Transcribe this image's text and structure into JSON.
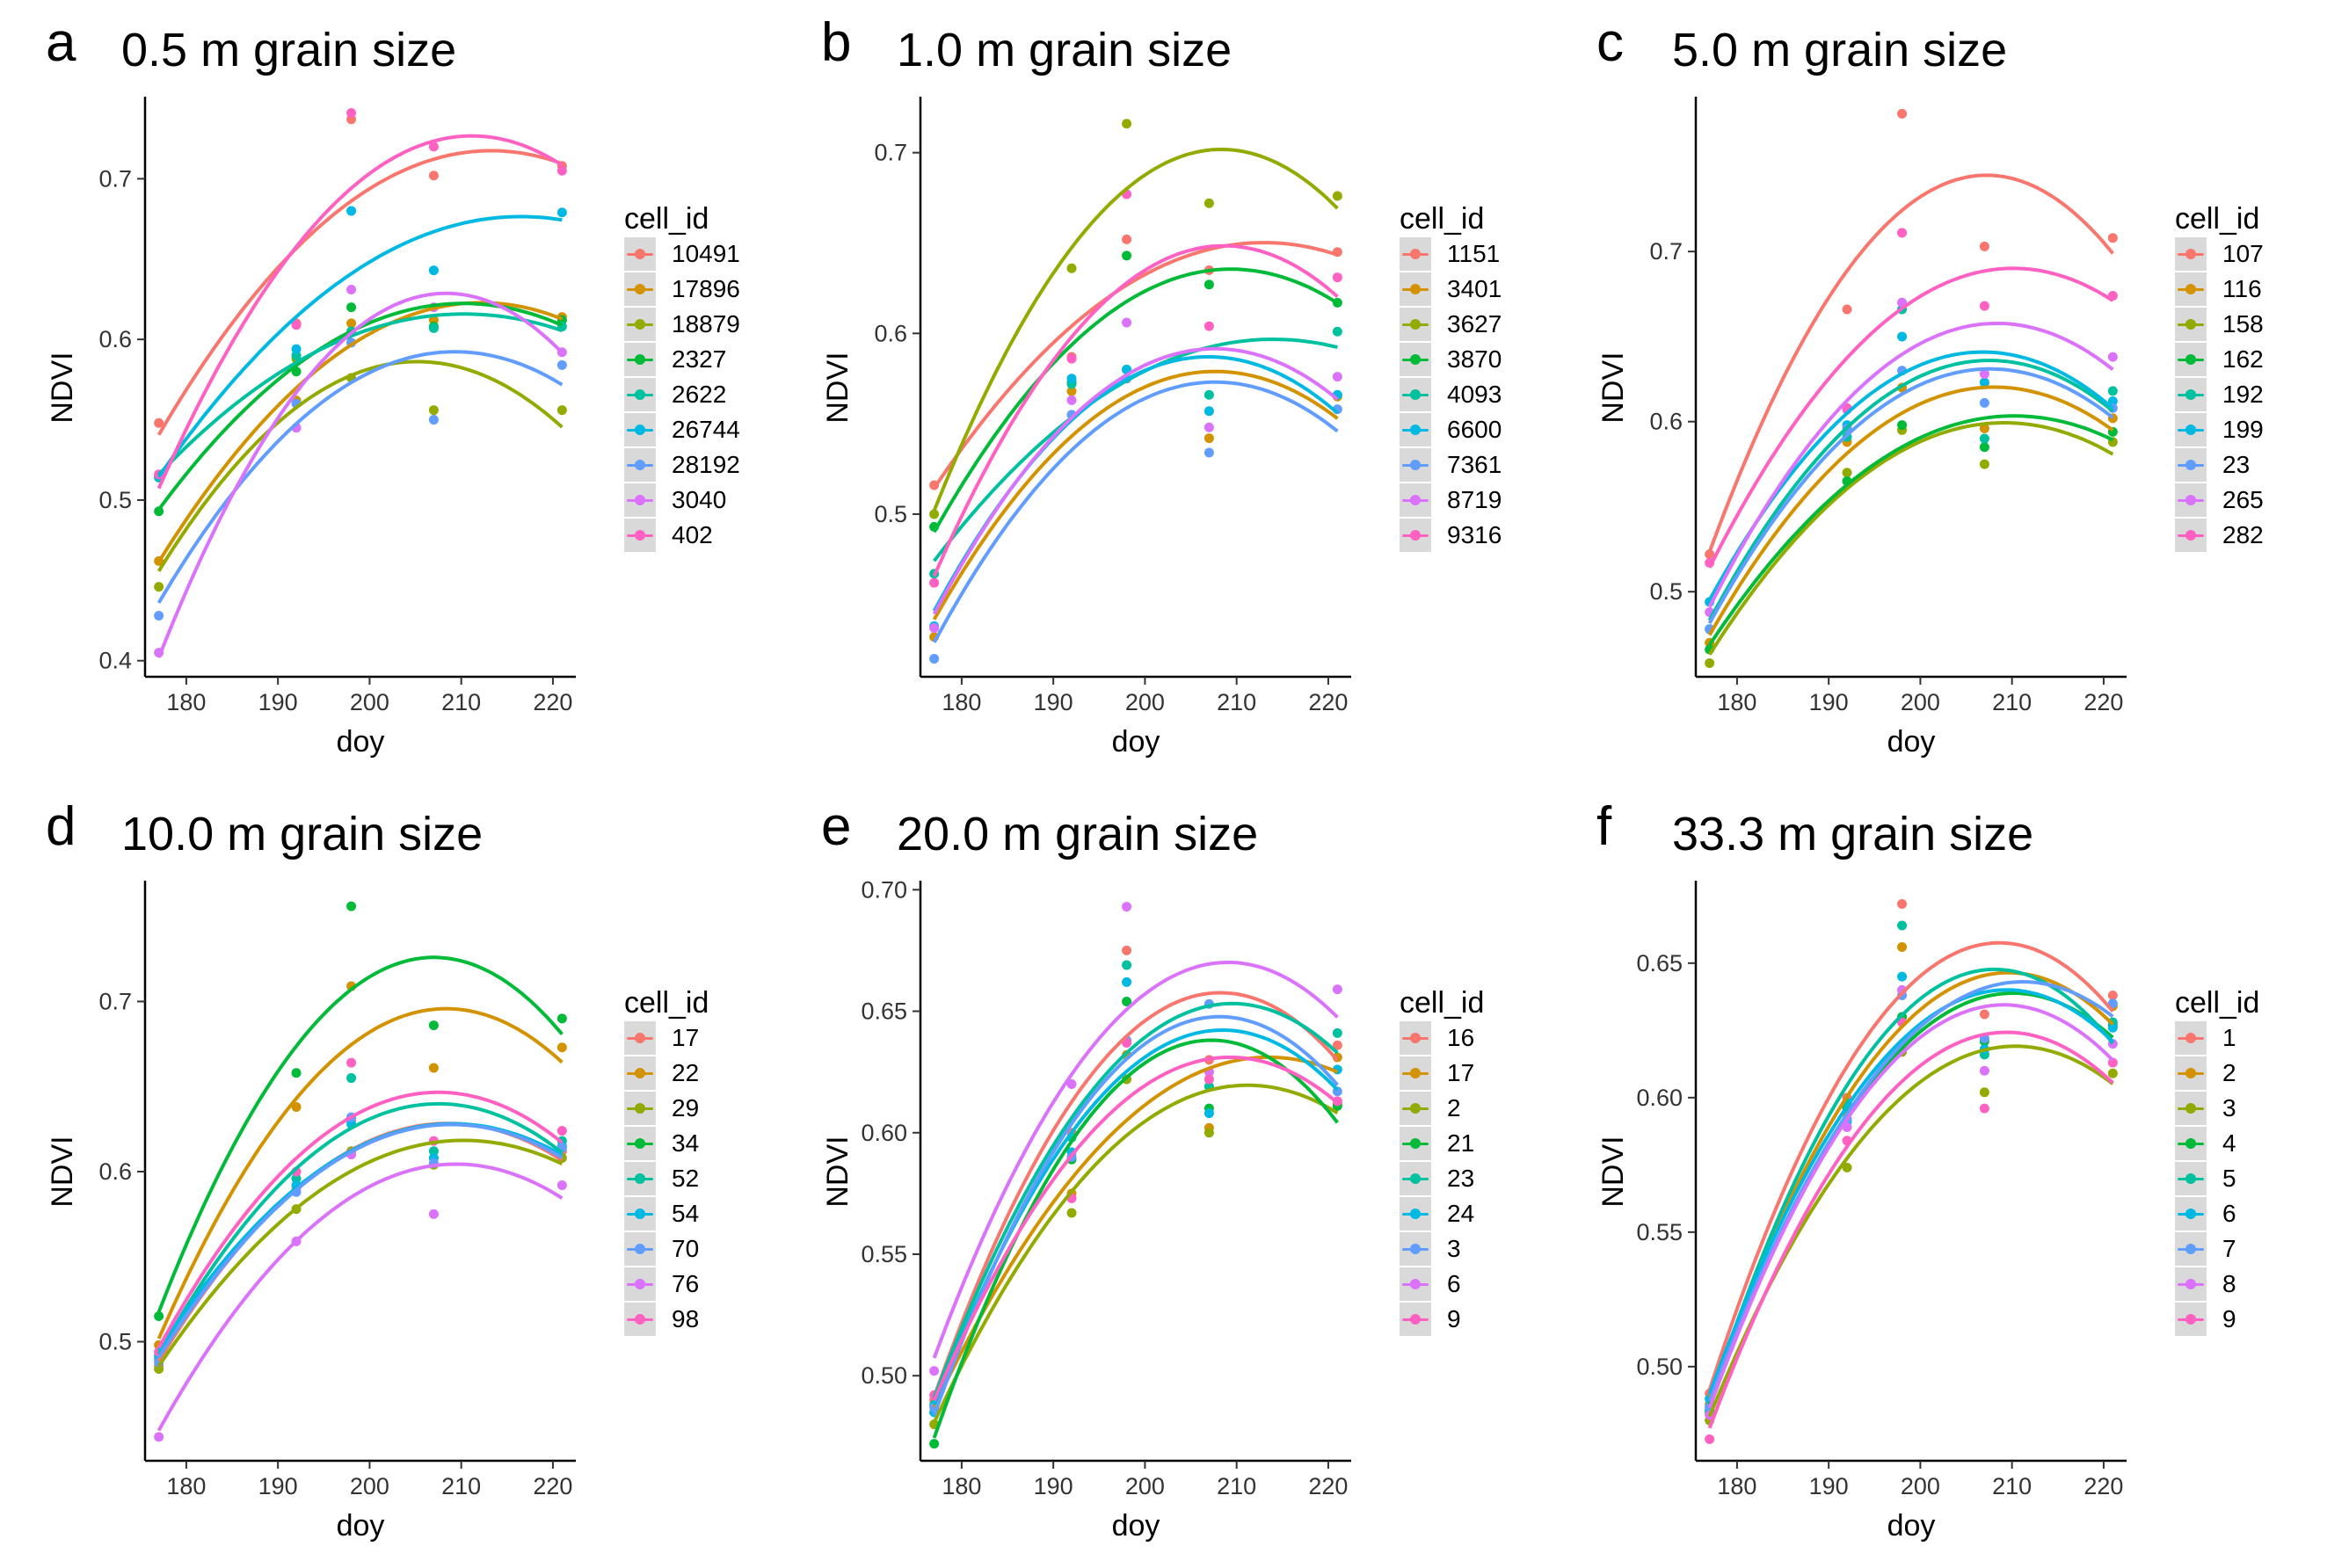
{
  "palette": [
    "#F8766D",
    "#D39200",
    "#93AA00",
    "#00BA38",
    "#00C19F",
    "#00B9E3",
    "#619CFF",
    "#DB72FB",
    "#FF61C3"
  ],
  "chart_data": [
    {
      "type": "scatter",
      "panel_label": "a",
      "title": "0.5 m grain size",
      "xlabel": "doy",
      "ylabel": "NDVI",
      "xlim": [
        175.5,
        222.5
      ],
      "ylim": [
        0.39,
        0.75
      ],
      "xticks": [
        180,
        190,
        200,
        210,
        220
      ],
      "yticks": [
        0.4,
        0.5,
        0.6,
        0.7
      ],
      "ytick_labels": [
        "0.4",
        "0.5",
        "0.6",
        "0.7"
      ],
      "x": [
        177,
        192,
        198,
        207,
        221
      ],
      "legend_title": "cell_id",
      "smooth": "quadratic",
      "grid": false,
      "legend_position": "right",
      "series": [
        {
          "name": "10491",
          "values": [
            0.548,
            0.61,
            0.737,
            0.702,
            0.708
          ]
        },
        {
          "name": "17896",
          "values": [
            0.462,
            0.562,
            0.61,
            0.612,
            0.614
          ]
        },
        {
          "name": "18879",
          "values": [
            0.446,
            0.588,
            0.576,
            0.556,
            0.556
          ]
        },
        {
          "name": "2327",
          "values": [
            0.493,
            0.58,
            0.62,
            0.608,
            0.612
          ]
        },
        {
          "name": "2622",
          "values": [
            0.514,
            0.59,
            0.605,
            0.607,
            0.608
          ]
        },
        {
          "name": "26744",
          "values": [
            0.515,
            0.594,
            0.68,
            0.643,
            0.679
          ]
        },
        {
          "name": "28192",
          "values": [
            0.428,
            0.56,
            0.598,
            0.55,
            0.584
          ]
        },
        {
          "name": "3040",
          "values": [
            0.405,
            0.545,
            0.631,
            0.62,
            0.592
          ]
        },
        {
          "name": "402",
          "values": [
            0.516,
            0.609,
            0.741,
            0.72,
            0.705
          ]
        }
      ]
    },
    {
      "type": "scatter",
      "panel_label": "b",
      "title": "1.0 m grain size",
      "xlabel": "doy",
      "ylabel": "NDVI",
      "xlim": [
        175.5,
        222.5
      ],
      "ylim": [
        0.41,
        0.73
      ],
      "xticks": [
        180,
        190,
        200,
        210,
        220
      ],
      "yticks": [
        0.5,
        0.6,
        0.7
      ],
      "ytick_labels": [
        "0.5",
        "0.6",
        "0.7"
      ],
      "x": [
        177,
        192,
        198,
        207,
        221
      ],
      "legend_title": "cell_id",
      "smooth": "quadratic",
      "grid": false,
      "legend_position": "right",
      "series": [
        {
          "name": "1151",
          "values": [
            0.516,
            0.587,
            0.652,
            0.635,
            0.645
          ]
        },
        {
          "name": "3401",
          "values": [
            0.432,
            0.568,
            0.575,
            0.542,
            0.565
          ]
        },
        {
          "name": "3627",
          "values": [
            0.5,
            0.636,
            0.716,
            0.672,
            0.676
          ]
        },
        {
          "name": "3870",
          "values": [
            0.493,
            0.573,
            0.643,
            0.627,
            0.617
          ]
        },
        {
          "name": "4093",
          "values": [
            0.467,
            0.572,
            0.58,
            0.566,
            0.601
          ]
        },
        {
          "name": "6600",
          "values": [
            0.438,
            0.575,
            0.58,
            0.557,
            0.566
          ]
        },
        {
          "name": "7361",
          "values": [
            0.42,
            0.555,
            0.575,
            0.534,
            0.558
          ]
        },
        {
          "name": "8719",
          "values": [
            0.437,
            0.563,
            0.606,
            0.548,
            0.576
          ]
        },
        {
          "name": "9316",
          "values": [
            0.462,
            0.586,
            0.677,
            0.604,
            0.631
          ]
        }
      ]
    },
    {
      "type": "scatter",
      "panel_label": "c",
      "title": "5.0 m grain size",
      "xlabel": "doy",
      "ylabel": "NDVI",
      "xlim": [
        175.5,
        222.5
      ],
      "ylim": [
        0.45,
        0.79
      ],
      "xticks": [
        180,
        190,
        200,
        210,
        220
      ],
      "yticks": [
        0.5,
        0.6,
        0.7
      ],
      "ytick_labels": [
        "0.5",
        "0.6",
        "0.7"
      ],
      "x": [
        177,
        192,
        198,
        207,
        221
      ],
      "legend_title": "cell_id",
      "smooth": "quadratic",
      "grid": false,
      "legend_position": "right",
      "series": [
        {
          "name": "107",
          "values": [
            0.522,
            0.666,
            0.781,
            0.703,
            0.708
          ]
        },
        {
          "name": "116",
          "values": [
            0.47,
            0.588,
            0.62,
            0.596,
            0.602
          ]
        },
        {
          "name": "158",
          "values": [
            0.458,
            0.57,
            0.595,
            0.575,
            0.588
          ]
        },
        {
          "name": "162",
          "values": [
            0.466,
            0.565,
            0.598,
            0.585,
            0.594
          ]
        },
        {
          "name": "192",
          "values": [
            0.478,
            0.591,
            0.666,
            0.59,
            0.618
          ]
        },
        {
          "name": "199",
          "values": [
            0.494,
            0.598,
            0.65,
            0.623,
            0.612
          ]
        },
        {
          "name": "23",
          "values": [
            0.478,
            0.596,
            0.63,
            0.611,
            0.608
          ]
        },
        {
          "name": "265",
          "values": [
            0.488,
            0.607,
            0.67,
            0.628,
            0.638
          ]
        },
        {
          "name": "282",
          "values": [
            0.517,
            0.608,
            0.711,
            0.668,
            0.674
          ]
        }
      ]
    },
    {
      "type": "scatter",
      "panel_label": "d",
      "title": "10.0 m grain size",
      "xlabel": "doy",
      "ylabel": "NDVI",
      "xlim": [
        175.5,
        222.5
      ],
      "ylim": [
        0.43,
        0.77
      ],
      "xticks": [
        180,
        190,
        200,
        210,
        220
      ],
      "yticks": [
        0.5,
        0.6,
        0.7
      ],
      "ytick_labels": [
        "0.5",
        "0.6",
        "0.7"
      ],
      "x": [
        177,
        192,
        198,
        207,
        221
      ],
      "legend_title": "cell_id",
      "smooth": "quadratic",
      "grid": false,
      "legend_position": "right",
      "series": [
        {
          "name": "17",
          "values": [
            0.486,
            0.59,
            0.63,
            0.608,
            0.612
          ]
        },
        {
          "name": "22",
          "values": [
            0.498,
            0.638,
            0.709,
            0.661,
            0.673
          ]
        },
        {
          "name": "29",
          "values": [
            0.484,
            0.578,
            0.612,
            0.604,
            0.608
          ]
        },
        {
          "name": "34",
          "values": [
            0.515,
            0.658,
            0.756,
            0.686,
            0.69
          ]
        },
        {
          "name": "52",
          "values": [
            0.49,
            0.596,
            0.655,
            0.612,
            0.618
          ]
        },
        {
          "name": "54",
          "values": [
            0.492,
            0.592,
            0.628,
            0.608,
            0.615
          ]
        },
        {
          "name": "70",
          "values": [
            0.488,
            0.588,
            0.632,
            0.605,
            0.614
          ]
        },
        {
          "name": "76",
          "values": [
            0.444,
            0.559,
            0.61,
            0.575,
            0.592
          ]
        },
        {
          "name": "98",
          "values": [
            0.494,
            0.6,
            0.664,
            0.618,
            0.624
          ]
        }
      ]
    },
    {
      "type": "scatter",
      "panel_label": "e",
      "title": "20.0 m grain size",
      "xlabel": "doy",
      "ylabel": "NDVI",
      "xlim": [
        175.5,
        222.5
      ],
      "ylim": [
        0.465,
        0.703
      ],
      "xticks": [
        180,
        190,
        200,
        210,
        220
      ],
      "yticks": [
        0.5,
        0.55,
        0.6,
        0.65,
        0.7
      ],
      "ytick_labels": [
        "0.50",
        "0.55",
        "0.60",
        "0.65",
        "0.70"
      ],
      "x": [
        177,
        192,
        198,
        207,
        221
      ],
      "legend_title": "cell_id",
      "smooth": "quadratic",
      "grid": false,
      "legend_position": "right",
      "series": [
        {
          "name": "16",
          "values": [
            0.49,
            0.6,
            0.675,
            0.63,
            0.636
          ]
        },
        {
          "name": "17",
          "values": [
            0.485,
            0.575,
            0.632,
            0.602,
            0.631
          ]
        },
        {
          "name": "2",
          "values": [
            0.48,
            0.567,
            0.622,
            0.6,
            0.612
          ]
        },
        {
          "name": "21",
          "values": [
            0.472,
            0.589,
            0.654,
            0.61,
            0.611
          ]
        },
        {
          "name": "23",
          "values": [
            0.488,
            0.598,
            0.669,
            0.619,
            0.641
          ]
        },
        {
          "name": "24",
          "values": [
            0.485,
            0.592,
            0.662,
            0.608,
            0.626
          ]
        },
        {
          "name": "3",
          "values": [
            0.487,
            0.59,
            0.638,
            0.653,
            0.617
          ]
        },
        {
          "name": "6",
          "values": [
            0.502,
            0.62,
            0.693,
            0.625,
            0.659
          ]
        },
        {
          "name": "9",
          "values": [
            0.492,
            0.573,
            0.637,
            0.622,
            0.613
          ]
        }
      ]
    },
    {
      "type": "scatter",
      "panel_label": "f",
      "title": "33.3 m grain size",
      "xlabel": "doy",
      "ylabel": "NDVI",
      "xlim": [
        175.5,
        222.5
      ],
      "ylim": [
        0.465,
        0.68
      ],
      "xticks": [
        180,
        190,
        200,
        210,
        220
      ],
      "yticks": [
        0.5,
        0.55,
        0.6,
        0.65
      ],
      "ytick_labels": [
        "0.50",
        "0.55",
        "0.60",
        "0.65"
      ],
      "x": [
        177,
        192,
        198,
        207,
        221
      ],
      "legend_title": "cell_id",
      "smooth": "quadratic",
      "grid": false,
      "legend_position": "right",
      "series": [
        {
          "name": "1",
          "values": [
            0.49,
            0.6,
            0.672,
            0.631,
            0.638
          ]
        },
        {
          "name": "2",
          "values": [
            0.486,
            0.594,
            0.656,
            0.618,
            0.634
          ]
        },
        {
          "name": "3",
          "values": [
            0.48,
            0.574,
            0.617,
            0.602,
            0.609
          ]
        },
        {
          "name": "4",
          "values": [
            0.483,
            0.596,
            0.63,
            0.621,
            0.627
          ]
        },
        {
          "name": "5",
          "values": [
            0.484,
            0.598,
            0.664,
            0.616,
            0.628
          ]
        },
        {
          "name": "6",
          "values": [
            0.488,
            0.591,
            0.645,
            0.618,
            0.626
          ]
        },
        {
          "name": "7",
          "values": [
            0.485,
            0.592,
            0.638,
            0.622,
            0.635
          ]
        },
        {
          "name": "8",
          "values": [
            0.482,
            0.589,
            0.64,
            0.61,
            0.62
          ]
        },
        {
          "name": "9",
          "values": [
            0.473,
            0.584,
            0.628,
            0.596,
            0.613
          ]
        }
      ]
    }
  ]
}
